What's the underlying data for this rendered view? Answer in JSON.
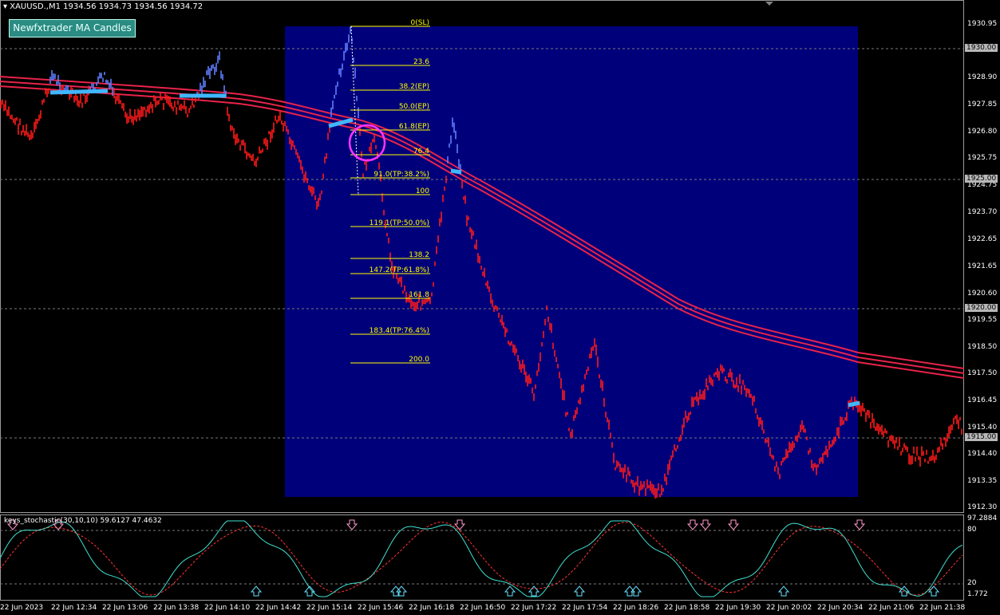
{
  "header": {
    "symbol": "XAUUSD.,M1",
    "quote": "1934.56 1934.73 1934.56 1934.72",
    "indicator_button": "Newfxtrader MA Candles"
  },
  "price_axis": {
    "labels": [
      "1930.95",
      "1928.90",
      "1927.85",
      "1926.80",
      "1925.75",
      "1924.75",
      "1923.70",
      "1922.65",
      "1921.65",
      "1920.60",
      "1919.55",
      "1918.50",
      "1917.50",
      "1916.45",
      "1915.40",
      "1914.40",
      "1913.35",
      "1912.30"
    ],
    "tags": [
      "1930.00",
      "1925.00",
      "1920.00",
      "1915.00"
    ]
  },
  "fibonacci": {
    "levels": [
      "0(SL)",
      "23.6",
      "38.2(EP)",
      "50.0(EP)",
      "61.8(EP)",
      "76.4",
      "91.0(TP:38.2%)",
      "100",
      "119.1(TP:50.0%)",
      "138.2",
      "147.2(TP:61.8%)",
      "161.8",
      "183.4(TP:76.4%)",
      "200.0"
    ]
  },
  "stochastic": {
    "label": "keys_stochastic(30,10,10) 59.6127 47.4632",
    "axis": [
      "97.2884",
      "80",
      "20",
      "1.772"
    ]
  },
  "time_axis": [
    "22 Jun 2023",
    "22 Jun 12:34",
    "22 Jun 13:06",
    "22 Jun 13:38",
    "22 Jun 14:10",
    "22 Jun 14:42",
    "22 Jun 15:14",
    "22 Jun 15:46",
    "22 Jun 16:18",
    "22 Jun 16:50",
    "22 Jun 17:22",
    "22 Jun 17:54",
    "22 Jun 18:26",
    "22 Jun 18:58",
    "22 Jun 19:30",
    "22 Jun 20:02",
    "22 Jun 20:34",
    "22 Jun 21:06",
    "22 Jun 21:38"
  ],
  "colors": {
    "background": "#000000",
    "fib_zone": "#00007a",
    "bear_candle": "#ff1a1a",
    "bull_candle": "#5f7dff",
    "ma_band": "#e8234a",
    "ma_highlight": "#3fb7ff",
    "fib_line": "#ffff00",
    "stoch_main": "#40e0d0",
    "stoch_signal": "#ff3333",
    "circle": "#ff33ff"
  }
}
